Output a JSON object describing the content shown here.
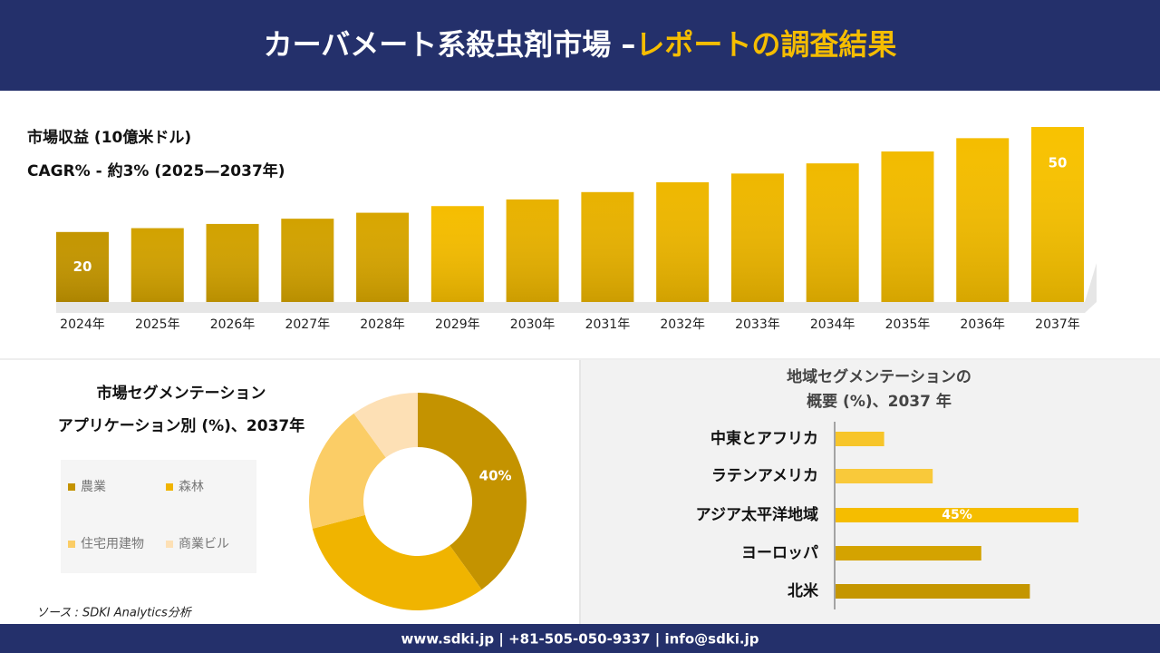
{
  "header": {
    "title_main": "カーバメート系殺虫剤市場 –",
    "title_highlight": "レポートの調査結果"
  },
  "source": "ソース : SDKI Analytics分析",
  "footer": "www.sdki.jp | +81-505-050-9337 | info@sdki.jp",
  "chart_data": [
    {
      "type": "bar",
      "title": "市場収益 (10億米ドル)",
      "subtitle": "CAGR% - 約3% (2025—2037年)",
      "categories": [
        "2024年",
        "2025年",
        "2026年",
        "2027年",
        "2028年",
        "2029年",
        "2030年",
        "2031年",
        "2032年",
        "2033年",
        "2034年",
        "2035年",
        "2036年",
        "2037年"
      ],
      "values": [
        20,
        21.1,
        22.3,
        23.8,
        25.5,
        27.4,
        29.3,
        31.4,
        34.2,
        36.7,
        39.6,
        43.0,
        46.8,
        50
      ],
      "value_labels": [
        "20",
        null,
        null,
        null,
        null,
        null,
        null,
        null,
        null,
        null,
        null,
        null,
        null,
        "50"
      ],
      "colors": [
        "#c49600",
        "#d2a200",
        "#d2a200",
        "#d2a200",
        "#d8a600",
        "#f5bd00",
        "#e8b200",
        "#e8b200",
        "#eeb700",
        "#eeb700",
        "#f0b900",
        "#f2bb00",
        "#f4bd00",
        "#f8c200"
      ]
    },
    {
      "type": "donut",
      "title": "市場セグメンテーション",
      "subtitle": "アプリケーション別 (%)、2037年",
      "categories": [
        "農業",
        "森林",
        "住宅用建物",
        "商業ビル"
      ],
      "values": [
        40,
        31,
        19,
        10
      ],
      "value_labels": [
        "40%",
        null,
        null,
        null
      ],
      "colors": [
        "#c49300",
        "#f0b400",
        "#fbcd66",
        "#fde0b5"
      ]
    },
    {
      "type": "hbar",
      "title": "地域セグメンテーションの",
      "subtitle": "概要 (%)、2037 年",
      "categories": [
        "中東とアフリカ",
        "ラテンアメリカ",
        "アジア太平洋地域",
        "ヨーロッパ",
        "北米"
      ],
      "values": [
        9,
        18,
        45,
        27,
        36
      ],
      "value_labels": [
        null,
        null,
        "45%",
        null,
        null
      ],
      "colors": [
        "#f7c52a",
        "#f9c93a",
        "#f5bd00",
        "#d4a300",
        "#c49600"
      ]
    }
  ]
}
